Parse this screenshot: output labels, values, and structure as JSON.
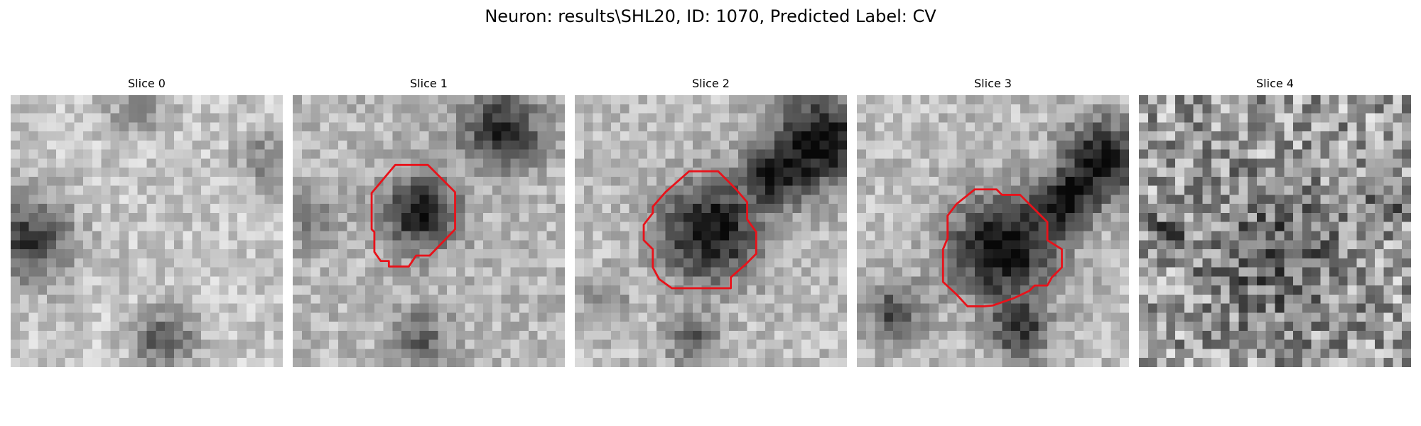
{
  "title": "Neuron: results\\SHL20, ID: 1070, Predicted Label: CV",
  "panels": [
    {
      "title": "Slice 0",
      "has_contour": false
    },
    {
      "title": "Slice 1",
      "has_contour": true
    },
    {
      "title": "Slice 2",
      "has_contour": true
    },
    {
      "title": "Slice 3",
      "has_contour": true
    },
    {
      "title": "Slice 4",
      "has_contour": false
    }
  ],
  "colormap": "gray",
  "contour_color": "#e8121a"
}
